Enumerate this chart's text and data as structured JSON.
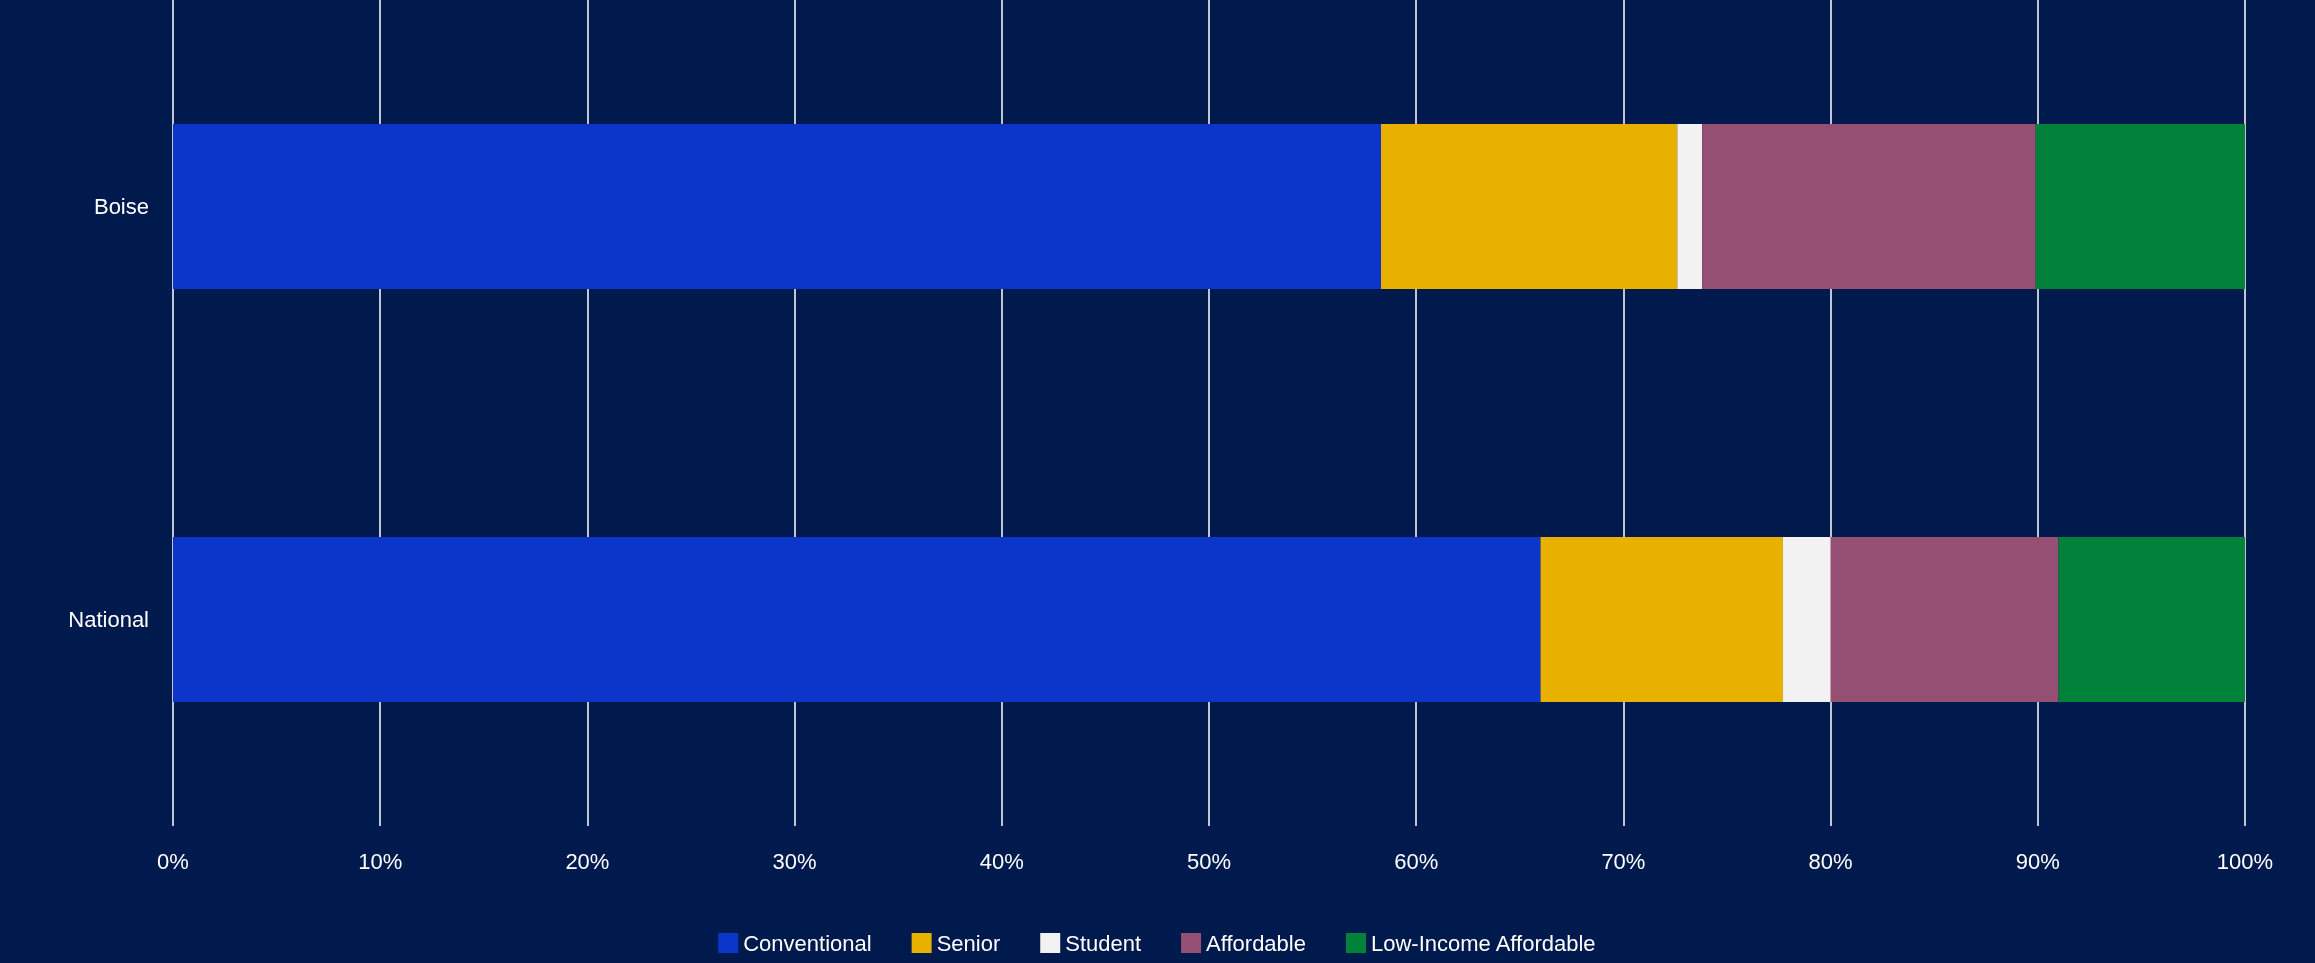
{
  "chart_data": {
    "type": "bar",
    "orientation": "horizontal",
    "stacked": true,
    "categories": [
      "Boise",
      "National"
    ],
    "series": [
      {
        "name": "Conventional",
        "color": "#0b36c9",
        "values": [
          58.3,
          66.0
        ]
      },
      {
        "name": "Senior",
        "color": "#e8b100",
        "values": [
          14.3,
          11.7
        ]
      },
      {
        "name": "Student",
        "color": "#f2f2f2",
        "values": [
          1.2,
          2.3
        ]
      },
      {
        "name": "Affordable",
        "color": "#954f72",
        "values": [
          16.1,
          11.0
        ]
      },
      {
        "name": "Low-Income Affordable",
        "color": "#00823b",
        "values": [
          10.1,
          9.0
        ]
      }
    ],
    "xlim": [
      0,
      100
    ],
    "xticks": [
      {
        "value": 0,
        "label": "0%"
      },
      {
        "value": 10,
        "label": "10%"
      },
      {
        "value": 20,
        "label": "20%"
      },
      {
        "value": 30,
        "label": "30%"
      },
      {
        "value": 40,
        "label": "40%"
      },
      {
        "value": 50,
        "label": "50%"
      },
      {
        "value": 60,
        "label": "60%"
      },
      {
        "value": 70,
        "label": "70%"
      },
      {
        "value": 80,
        "label": "80%"
      },
      {
        "value": 90,
        "label": "90%"
      },
      {
        "value": 100,
        "label": "100%"
      }
    ],
    "grid": "x",
    "legend": "bottom"
  }
}
